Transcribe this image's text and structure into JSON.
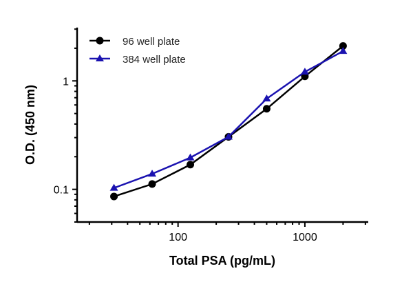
{
  "chart_data": {
    "type": "line",
    "title": "",
    "xlabel": "Total PSA (pg/mL)",
    "ylabel": "O.D. (450 nm)",
    "xscale": "log",
    "yscale": "log",
    "xlim": [
      16,
      3160
    ],
    "ylim": [
      0.05,
      3.1
    ],
    "xticks": [
      {
        "value": 100,
        "label": "100"
      },
      {
        "value": 1000,
        "label": "1000"
      }
    ],
    "yticks": [
      {
        "value": 0.1,
        "label": "0.1"
      },
      {
        "value": 1,
        "label": "1"
      }
    ],
    "grid": false,
    "legend_position": "top-left",
    "x": [
      31.25,
      62.5,
      125,
      250,
      500,
      1000,
      2000
    ],
    "series": [
      {
        "name": "96 well plate",
        "color": "#000000",
        "marker": "circle",
        "values": [
          0.086,
          0.112,
          0.169,
          0.305,
          0.553,
          1.1,
          2.1
        ]
      },
      {
        "name": "384 well plate",
        "color": "#1a12b0",
        "marker": "triangle",
        "values": [
          0.103,
          0.139,
          0.196,
          0.305,
          0.685,
          1.21,
          1.88
        ]
      }
    ]
  }
}
